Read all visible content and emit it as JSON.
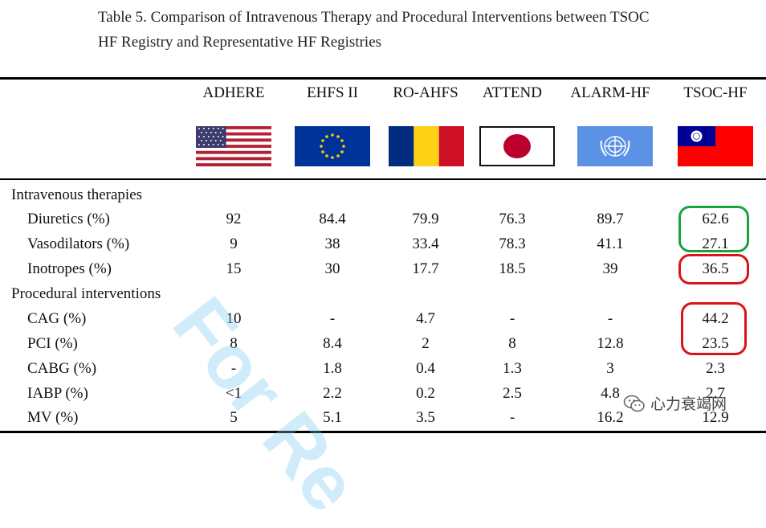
{
  "title": {
    "line1": "Table 5. Comparison of Intravenous Therapy and Procedural Interventions between TSOC",
    "line2": "HF Registry and Representative HF Registries"
  },
  "columns": [
    "ADHERE",
    "EHFS II",
    "RO-AHFS",
    "ATTEND",
    "ALARM-HF",
    "TSOC-HF"
  ],
  "flags": [
    {
      "name": "usa-flag",
      "colors": [
        "#b22234",
        "#ffffff",
        "#3c3b6e"
      ]
    },
    {
      "name": "eu-flag",
      "colors": [
        "#003399",
        "#ffcc00"
      ]
    },
    {
      "name": "romania-flag",
      "colors": [
        "#002b7f",
        "#fcd116",
        "#ce1126"
      ]
    },
    {
      "name": "japan-flag",
      "colors": [
        "#ffffff",
        "#bc002d"
      ]
    },
    {
      "name": "un-flag",
      "colors": [
        "#5b92e5",
        "#ffffff"
      ]
    },
    {
      "name": "taiwan-flag",
      "colors": [
        "#fe0000",
        "#000095",
        "#ffffff"
      ]
    }
  ],
  "sections": [
    {
      "label": "Intravenous therapies",
      "rows": [
        {
          "label": "Diuretics (%)",
          "values": [
            "92",
            "84.4",
            "79.9",
            "76.3",
            "89.7",
            "62.6"
          ]
        },
        {
          "label": "Vasodilators (%)",
          "values": [
            "9",
            "38",
            "33.4",
            "78.3",
            "41.1",
            "27.1"
          ]
        },
        {
          "label": "Inotropes (%)",
          "values": [
            "15",
            "30",
            "17.7",
            "18.5",
            "39",
            "36.5"
          ]
        }
      ]
    },
    {
      "label": "Procedural interventions",
      "rows": [
        {
          "label": "CAG (%)",
          "values": [
            "10",
            "-",
            "4.7",
            "-",
            "-",
            "44.2"
          ]
        },
        {
          "label": "PCI (%)",
          "values": [
            "8",
            "8.4",
            "2",
            "8",
            "12.8",
            "23.5"
          ]
        },
        {
          "label": "CABG (%)",
          "values": [
            "-",
            "1.8",
            "0.4",
            "1.3",
            "3",
            "2.3"
          ]
        },
        {
          "label": "IABP (%)",
          "values": [
            "<1",
            "2.2",
            "0.2",
            "2.5",
            "4.8",
            "2.7"
          ]
        },
        {
          "label": "MV (%)",
          "values": [
            "5",
            "5.1",
            "3.5",
            "-",
            "16.2",
            "12.9"
          ]
        }
      ]
    }
  ],
  "highlight_colors": {
    "green": "#1aa33c",
    "red": "#d9141a"
  },
  "watermark": "For Re",
  "logo": {
    "icon": "wechat-icon",
    "text": "心力衰竭网"
  }
}
